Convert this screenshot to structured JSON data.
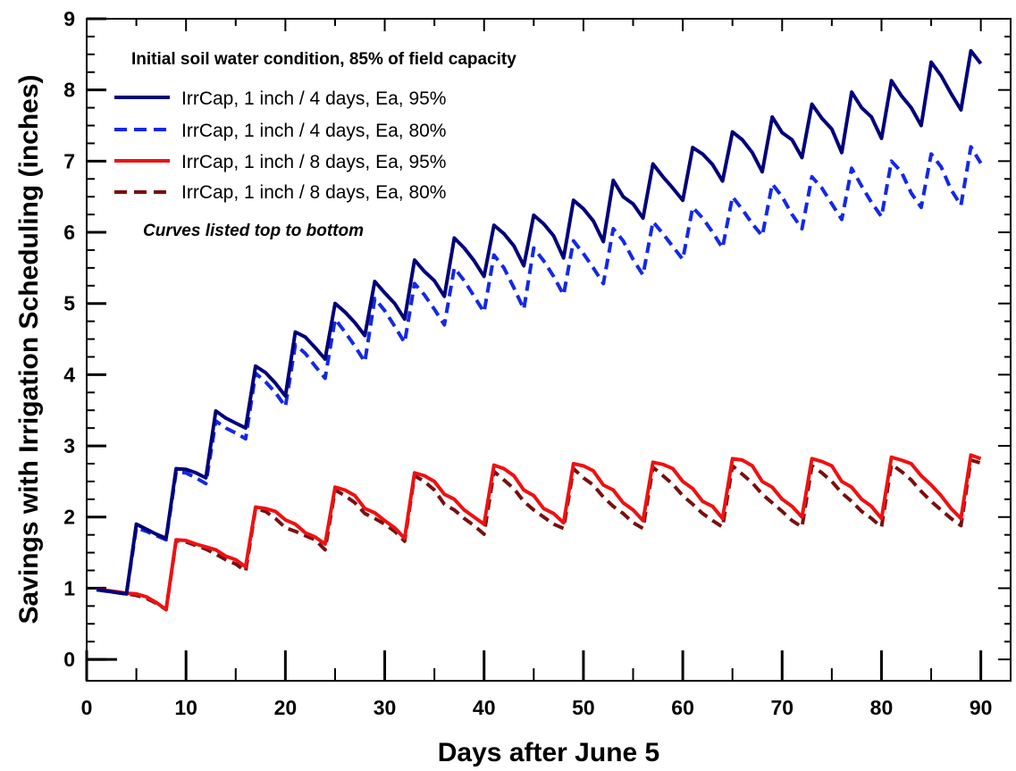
{
  "chart_data": {
    "type": "line",
    "xlabel": "Days after June 5",
    "ylabel": "Savings with Irrigation Scheduling (inches)",
    "xlim": [
      0,
      93
    ],
    "ylim": [
      -0.3,
      9
    ],
    "xticks": [
      0,
      10,
      20,
      30,
      40,
      50,
      60,
      70,
      80,
      90
    ],
    "yticks": [
      0,
      1,
      2,
      3,
      4,
      5,
      6,
      7,
      8,
      9
    ],
    "grid": false,
    "legend_position": "top-left",
    "legend_heading": "Initial soil water condition, 85% of field capacity",
    "annotation": "Curves listed top to bottom",
    "series": [
      {
        "name": "IrrCap, 1 inch / 4 days, Ea, 95%",
        "color": "#00007a",
        "dash": "solid",
        "x": [
          1,
          4,
          5,
          6,
          7,
          8,
          9,
          10,
          11,
          12,
          13,
          14,
          15,
          16,
          17,
          18,
          19,
          20,
          21,
          22,
          23,
          24,
          25,
          26,
          27,
          28,
          29,
          30,
          31,
          32,
          33,
          34,
          35,
          36,
          37,
          38,
          39,
          40,
          41,
          42,
          43,
          44,
          45,
          46,
          47,
          48,
          49,
          50,
          51,
          52,
          53,
          54,
          55,
          56,
          57,
          58,
          59,
          60,
          61,
          62,
          63,
          64,
          65,
          66,
          67,
          68,
          69,
          70,
          71,
          72,
          73,
          74,
          75,
          76,
          77,
          78,
          79,
          80,
          81,
          82,
          83,
          84,
          85,
          86,
          87,
          88,
          89,
          90
        ],
        "y": [
          0.98,
          0.92,
          1.9,
          1.83,
          1.76,
          1.7,
          2.68,
          2.67,
          2.62,
          2.55,
          3.49,
          3.39,
          3.32,
          3.25,
          4.12,
          4.03,
          3.88,
          3.7,
          4.6,
          4.53,
          4.38,
          4.22,
          5.0,
          4.88,
          4.73,
          4.55,
          5.31,
          5.15,
          5.0,
          4.78,
          5.61,
          5.45,
          5.32,
          5.1,
          5.92,
          5.78,
          5.6,
          5.38,
          6.1,
          5.98,
          5.81,
          5.53,
          6.24,
          6.12,
          5.95,
          5.64,
          6.45,
          6.33,
          6.16,
          5.87,
          6.73,
          6.5,
          6.4,
          6.2,
          6.96,
          6.78,
          6.62,
          6.45,
          7.19,
          7.1,
          6.95,
          6.72,
          7.41,
          7.3,
          7.12,
          6.85,
          7.62,
          7.4,
          7.3,
          7.05,
          7.8,
          7.6,
          7.45,
          7.12,
          7.97,
          7.75,
          7.62,
          7.32,
          8.13,
          7.92,
          7.75,
          7.5,
          8.39,
          8.2,
          7.95,
          7.72,
          8.55,
          8.37
        ]
      },
      {
        "name": "IrrCap, 1 inch / 4 days, Ea, 80%",
        "color": "#1428e6",
        "dash": "dashed",
        "x": [
          1,
          4,
          5,
          6,
          7,
          8,
          9,
          10,
          11,
          12,
          13,
          14,
          15,
          16,
          17,
          18,
          19,
          20,
          21,
          22,
          23,
          24,
          25,
          26,
          27,
          28,
          29,
          30,
          31,
          32,
          33,
          34,
          35,
          36,
          37,
          38,
          39,
          40,
          41,
          42,
          43,
          44,
          45,
          46,
          47,
          48,
          49,
          50,
          51,
          52,
          53,
          54,
          55,
          56,
          57,
          58,
          59,
          60,
          61,
          62,
          63,
          64,
          65,
          66,
          67,
          68,
          69,
          70,
          71,
          72,
          73,
          74,
          75,
          76,
          77,
          78,
          79,
          80,
          81,
          82,
          83,
          84,
          85,
          86,
          87,
          88,
          89,
          90
        ],
        "y": [
          0.98,
          0.92,
          1.85,
          1.8,
          1.74,
          1.68,
          2.63,
          2.62,
          2.55,
          2.47,
          3.35,
          3.25,
          3.18,
          3.1,
          4.02,
          3.9,
          3.75,
          3.55,
          4.42,
          4.3,
          4.12,
          3.95,
          4.78,
          4.6,
          4.4,
          4.18,
          5.07,
          4.9,
          4.68,
          4.45,
          5.28,
          5.12,
          4.92,
          4.7,
          5.5,
          5.32,
          5.1,
          4.88,
          5.68,
          5.5,
          5.22,
          4.92,
          5.78,
          5.6,
          5.38,
          5.12,
          5.88,
          5.7,
          5.5,
          5.28,
          6.05,
          5.88,
          5.62,
          5.4,
          6.15,
          5.98,
          5.8,
          5.62,
          6.35,
          6.2,
          6.0,
          5.78,
          6.5,
          6.32,
          6.12,
          5.95,
          6.68,
          6.5,
          6.25,
          6.05,
          6.78,
          6.62,
          6.4,
          6.18,
          6.9,
          6.65,
          6.42,
          6.22,
          7.0,
          6.85,
          6.55,
          6.35,
          7.1,
          6.92,
          6.6,
          6.38,
          7.2,
          6.97
        ]
      },
      {
        "name": "IrrCap, 1 inch / 8 days, Ea, 95%",
        "color": "#ee1111",
        "dash": "solid",
        "x": [
          1,
          2,
          3,
          4,
          5,
          6,
          7,
          8,
          9,
          10,
          11,
          12,
          13,
          14,
          15,
          16,
          17,
          18,
          19,
          20,
          21,
          22,
          23,
          24,
          25,
          26,
          27,
          28,
          29,
          30,
          31,
          32,
          33,
          34,
          35,
          36,
          37,
          38,
          39,
          40,
          41,
          42,
          43,
          44,
          45,
          46,
          47,
          48,
          49,
          50,
          51,
          52,
          53,
          54,
          55,
          56,
          57,
          58,
          59,
          60,
          61,
          62,
          63,
          64,
          65,
          66,
          67,
          68,
          69,
          70,
          71,
          72,
          73,
          74,
          75,
          76,
          77,
          78,
          79,
          80,
          81,
          82,
          83,
          84,
          85,
          86,
          87,
          88,
          89,
          90
        ],
        "y": [
          0.98,
          0.97,
          0.95,
          0.93,
          0.92,
          0.88,
          0.8,
          0.7,
          1.68,
          1.67,
          1.62,
          1.58,
          1.54,
          1.45,
          1.4,
          1.3,
          2.14,
          2.12,
          2.08,
          1.96,
          1.9,
          1.78,
          1.72,
          1.62,
          2.42,
          2.38,
          2.3,
          2.12,
          2.06,
          1.95,
          1.85,
          1.7,
          2.62,
          2.58,
          2.5,
          2.32,
          2.25,
          2.1,
          2.0,
          1.9,
          2.73,
          2.68,
          2.58,
          2.38,
          2.3,
          2.12,
          2.05,
          1.92,
          2.75,
          2.72,
          2.65,
          2.45,
          2.38,
          2.2,
          2.1,
          1.95,
          2.77,
          2.74,
          2.68,
          2.5,
          2.4,
          2.22,
          2.15,
          1.98,
          2.82,
          2.8,
          2.72,
          2.5,
          2.42,
          2.25,
          2.15,
          2.0,
          2.82,
          2.78,
          2.72,
          2.5,
          2.42,
          2.25,
          2.15,
          1.98,
          2.84,
          2.8,
          2.75,
          2.58,
          2.45,
          2.3,
          2.12,
          1.98,
          2.87,
          2.82
        ]
      },
      {
        "name": "IrrCap, 1 inch / 8 days, Ea, 80%",
        "color": "#7a0f0f",
        "dash": "dashed",
        "x": [
          1,
          2,
          3,
          4,
          5,
          6,
          7,
          8,
          9,
          10,
          11,
          12,
          13,
          14,
          15,
          16,
          17,
          18,
          19,
          20,
          21,
          22,
          23,
          24,
          25,
          26,
          27,
          28,
          29,
          30,
          31,
          32,
          33,
          34,
          35,
          36,
          37,
          38,
          39,
          40,
          41,
          42,
          43,
          44,
          45,
          46,
          47,
          48,
          49,
          50,
          51,
          52,
          53,
          54,
          55,
          56,
          57,
          58,
          59,
          60,
          61,
          62,
          63,
          64,
          65,
          66,
          67,
          68,
          69,
          70,
          71,
          72,
          73,
          74,
          75,
          76,
          77,
          78,
          79,
          80,
          81,
          82,
          83,
          84,
          85,
          86,
          87,
          88,
          89,
          90
        ],
        "y": [
          0.98,
          0.96,
          0.94,
          0.92,
          0.9,
          0.86,
          0.79,
          0.7,
          1.67,
          1.65,
          1.6,
          1.55,
          1.48,
          1.4,
          1.34,
          1.24,
          2.12,
          2.08,
          1.98,
          1.85,
          1.8,
          1.74,
          1.68,
          1.54,
          2.38,
          2.3,
          2.2,
          2.05,
          1.98,
          1.9,
          1.8,
          1.66,
          2.58,
          2.5,
          2.38,
          2.18,
          2.1,
          1.98,
          1.88,
          1.76,
          2.64,
          2.52,
          2.4,
          2.22,
          2.1,
          2.0,
          1.9,
          1.84,
          2.68,
          2.55,
          2.45,
          2.28,
          2.15,
          2.05,
          1.92,
          1.84,
          2.7,
          2.58,
          2.46,
          2.3,
          2.18,
          2.05,
          1.95,
          1.86,
          2.72,
          2.6,
          2.48,
          2.32,
          2.2,
          2.08,
          1.95,
          1.86,
          2.72,
          2.62,
          2.5,
          2.34,
          2.22,
          2.08,
          1.98,
          1.86,
          2.74,
          2.64,
          2.52,
          2.36,
          2.22,
          2.1,
          1.98,
          1.88,
          2.8,
          2.76
        ]
      }
    ]
  }
}
